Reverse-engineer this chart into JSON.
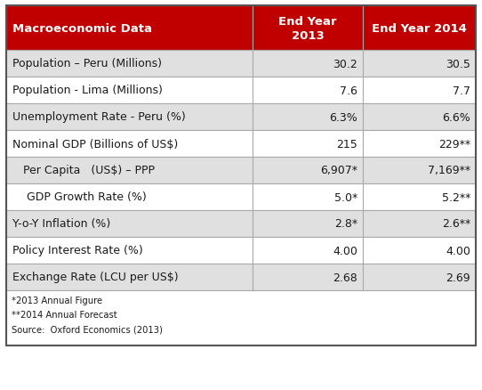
{
  "header_bg": "#c00000",
  "header_text_color": "#ffffff",
  "col1_header": "Macroeconomic Data",
  "col2_header": "End Year\n2013",
  "col3_header": "End Year 2014",
  "rows": [
    {
      "label": "Population – Peru (Millions)",
      "val2013": "30.2",
      "val2014": "30.5",
      "shaded": true
    },
    {
      "label": "Population - Lima (Millions)",
      "val2013": "7.6",
      "val2014": "7.7",
      "shaded": false
    },
    {
      "label": "Unemployment Rate - Peru (%)",
      "val2013": "6.3%",
      "val2014": "6.6%",
      "shaded": true
    },
    {
      "label": "Nominal GDP (Billions of US$)",
      "val2013": "215",
      "val2014": "229**",
      "shaded": false
    },
    {
      "label": "   Per Capita   (US$) – PPP",
      "val2013": "6,907*",
      "val2014": "7,169**",
      "shaded": true
    },
    {
      "label": "    GDP Growth Rate (%)",
      "val2013": "5.0*",
      "val2014": "5.2**",
      "shaded": false
    },
    {
      "label": "Y-o-Y Inflation (%)",
      "val2013": "2.8*",
      "val2014": "2.6**",
      "shaded": true
    },
    {
      "label": "Policy Interest Rate (%)",
      "val2013": "4.00",
      "val2014": "4.00",
      "shaded": false
    },
    {
      "label": "Exchange Rate (LCU per US$)",
      "val2013": "2.68",
      "val2014": "2.69",
      "shaded": true
    }
  ],
  "footnotes": [
    "*2013 Annual Figure",
    "**2014 Annual Forecast",
    "Source:  Oxford Economics (2013)"
  ],
  "shaded_bg": "#e0e0e0",
  "white_bg": "#ffffff",
  "border_color": "#aaaaaa",
  "outer_border_color": "#555555",
  "text_color_dark": "#1a1a1a",
  "font_size_header": 9.5,
  "font_size_body": 9.0,
  "font_size_footnote": 7.2,
  "fig_width": 5.42,
  "fig_height": 4.39,
  "dpi": 100
}
